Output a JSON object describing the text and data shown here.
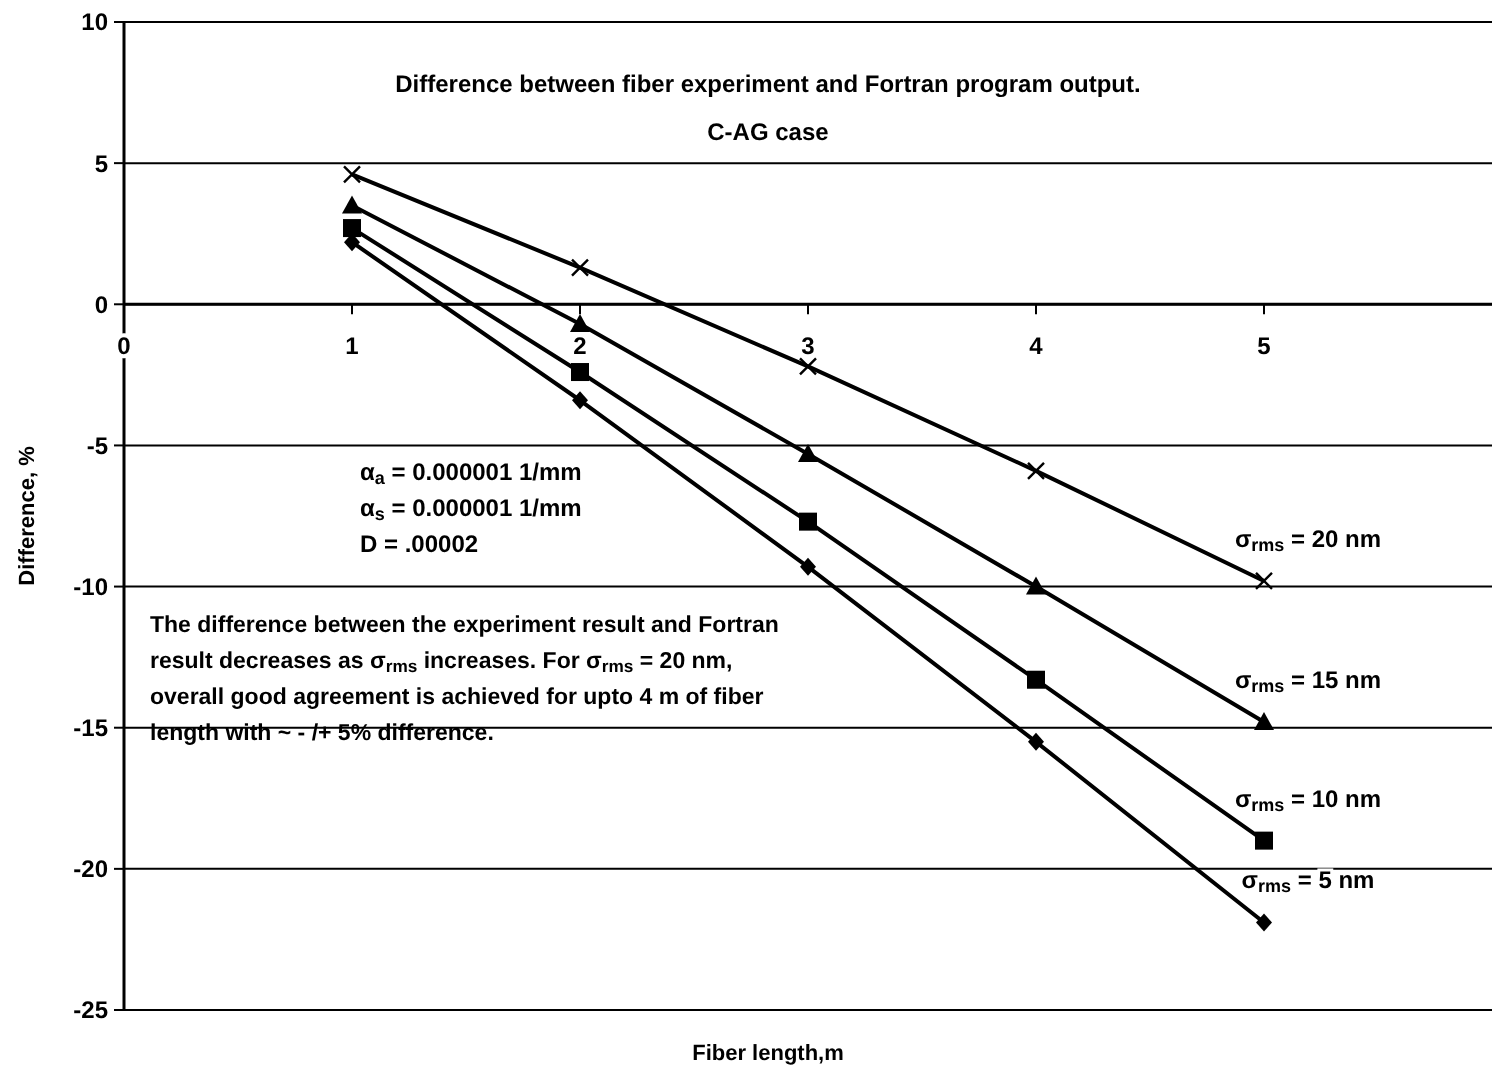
{
  "chart_data": {
    "type": "line",
    "title": "Difference between fiber experiment and Fortran program output.",
    "subtitle": "C-AG case",
    "xlabel": "Fiber length,m",
    "ylabel": "Difference, %",
    "x": [
      1,
      2,
      3,
      4,
      5
    ],
    "xlim": [
      0,
      6
    ],
    "xticks": [
      0,
      1,
      2,
      3,
      4,
      5
    ],
    "ylim": [
      -25,
      10
    ],
    "yticks": [
      -25,
      -20,
      -15,
      -10,
      -5,
      0,
      5,
      10
    ],
    "grid": "y",
    "series": [
      {
        "name": "σ$_{rms}$ = 20 nm",
        "color": "#000000",
        "marker": "cross",
        "values": [
          4.6,
          1.3,
          -2.2,
          -5.9,
          -9.8
        ]
      },
      {
        "name": "σ$_{rms}$ = 15 nm",
        "color": "#000000",
        "marker": "triangle",
        "values": [
          3.5,
          -0.7,
          -5.3,
          -10.0,
          -14.8
        ]
      },
      {
        "name": "σ$_{rms}$ = 10 nm",
        "color": "#000000",
        "marker": "square",
        "values": [
          2.7,
          -2.4,
          -7.7,
          -13.3,
          -19.0
        ]
      },
      {
        "name": "σ$_{rms}$ = 5 nm",
        "color": "#000000",
        "marker": "diamond",
        "values": [
          2.2,
          -3.4,
          -9.3,
          -15.5,
          -21.9
        ]
      }
    ],
    "annotations": [
      "α$_{a}$ = 0.000001 1/mm",
      "α$_{s}$ = 0.000001 1/mm",
      "D = .00002",
      "The difference between the experiment result and Fortran result decreases as σ$_{rms}$ increases. For σ$_{rms}$ = 20 nm, overall good agreement is achieved for upto 4 m of fiber length with ~ - /+ 5% difference."
    ]
  }
}
